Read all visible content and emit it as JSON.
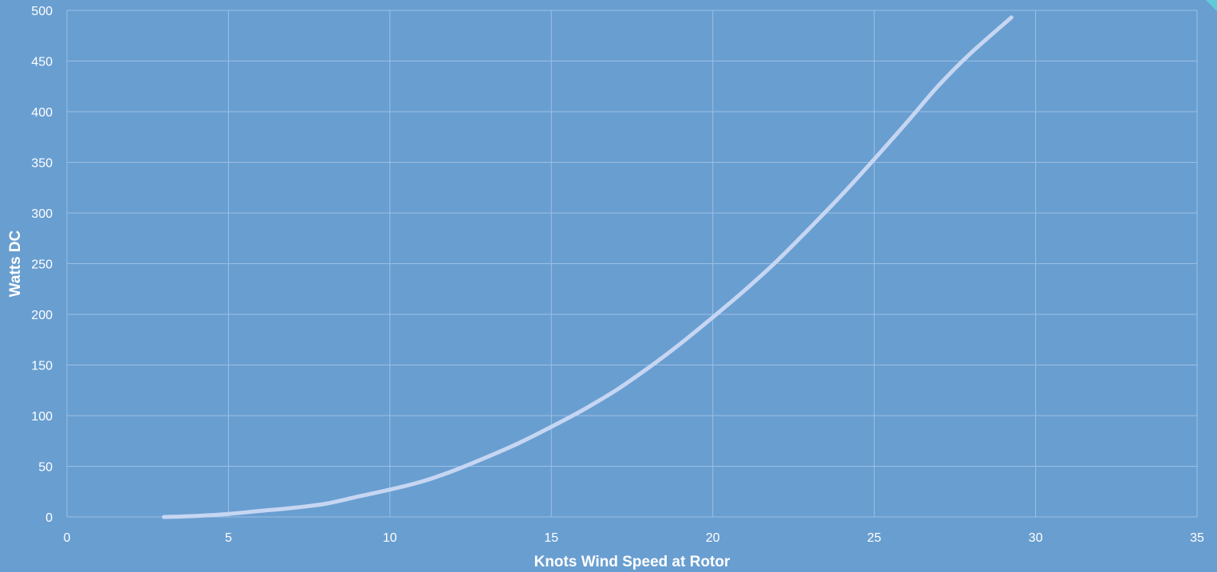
{
  "chart_data": {
    "type": "line",
    "title": "",
    "xlabel": "Knots Wind Speed at Rotor",
    "ylabel": "Watts DC",
    "xlim": [
      0,
      35
    ],
    "ylim": [
      0,
      500
    ],
    "x_ticks": [
      0,
      5,
      10,
      15,
      20,
      25,
      30,
      35
    ],
    "y_ticks": [
      0,
      50,
      100,
      150,
      200,
      250,
      300,
      350,
      400,
      450,
      500
    ],
    "x_tick_labels": [
      "0",
      "5",
      "10",
      "15",
      "20",
      "25",
      "30",
      "35"
    ],
    "y_tick_labels": [
      "0",
      "50",
      "100",
      "150",
      "200",
      "250",
      "300",
      "350",
      "400",
      "450",
      "500"
    ],
    "grid": true,
    "legend": "none",
    "series": [
      {
        "x": [
          3,
          4,
          5,
          6,
          7,
          8,
          9,
          10,
          11,
          12,
          13,
          14,
          15,
          16,
          17,
          18,
          19,
          20,
          21,
          22,
          23,
          24,
          25,
          26,
          27,
          28,
          29.25
        ],
        "y": [
          0,
          1,
          3,
          6,
          9,
          13,
          20,
          27,
          35,
          46,
          59,
          73,
          89,
          106,
          125,
          147,
          171,
          197,
          224,
          253,
          285,
          318,
          353,
          389,
          426,
          458,
          493
        ],
        "color": "#c6d6f2"
      }
    ],
    "background_color": "#699ed0",
    "gridline_color": "#9cc0e3",
    "text_color": "#ffffff"
  }
}
